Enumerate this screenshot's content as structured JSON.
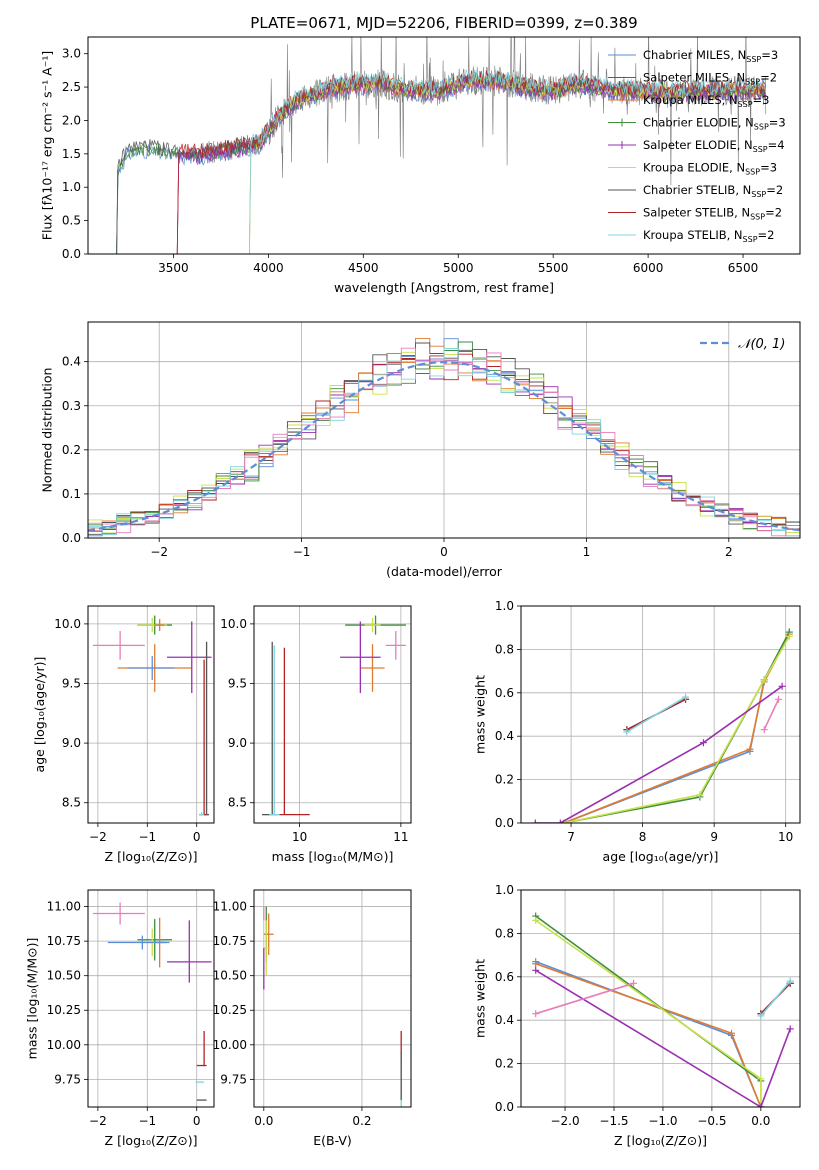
{
  "figure": {
    "title": "PLATE=0671, MJD=52206, FIBERID=0399, z=0.389"
  },
  "legend_entries": [
    {
      "label": "Chabrier MILES, N",
      "sub": "SSP",
      "suffix": "=3",
      "color": "#5b8fd6",
      "marker": false
    },
    {
      "label": "Salpeter MILES, N",
      "sub": "SSP",
      "suffix": "=2",
      "color": "#9a2fb0",
      "marker": false
    },
    {
      "label": "Kroupa MILES, N",
      "sub": "SSP",
      "suffix": "=3",
      "color": "#e07b30",
      "marker": false
    },
    {
      "label": "Chabrier ELODIE, N",
      "sub": "SSP",
      "suffix": "=3",
      "color": "#3e8e3e",
      "marker": true
    },
    {
      "label": "Salpeter ELODIE, N",
      "sub": "SSP",
      "suffix": "=4",
      "color": "#9a2fb0",
      "marker": true
    },
    {
      "label": "Kroupa ELODIE, N",
      "sub": "SSP",
      "suffix": "=3",
      "color": "#c8e04a",
      "marker": false
    },
    {
      "label": "Chabrier STELIB, N",
      "sub": "SSP",
      "suffix": "=2",
      "color": "#555555",
      "marker": false
    },
    {
      "label": "Salpeter STELIB, N",
      "sub": "SSP",
      "suffix": "=2",
      "color": "#b22222",
      "marker": false
    },
    {
      "label": "Kroupa STELIB, N",
      "sub": "SSP",
      "suffix": "=2",
      "color": "#7fd4e0",
      "marker": false
    }
  ],
  "chart_data": [
    {
      "id": "spectrum",
      "type": "line",
      "xlabel": "wavelength [Angstrom, rest frame]",
      "ylabel": "Flux [fλ10⁻¹⁷ erg cm⁻² s⁻¹ A⁻¹]",
      "xlim": [
        3050,
        6800
      ],
      "ylim": [
        0,
        3.25
      ],
      "xticks": [
        "3500",
        "4000",
        "4500",
        "5000",
        "5500",
        "6000",
        "6500"
      ],
      "yticks": [
        "0.0",
        "0.5",
        "1.0",
        "1.5",
        "2.0",
        "2.5",
        "3.0"
      ],
      "grid": false,
      "legend": "right",
      "continuum": {
        "x": [
          3200,
          3260,
          3350,
          3450,
          3550,
          3650,
          3750,
          3850,
          3950,
          4050,
          4150,
          4300,
          4450,
          4600,
          4750,
          4900,
          5050,
          5200,
          5350,
          5500,
          5650,
          5800,
          5950,
          6100,
          6250,
          6400,
          6550,
          6620
        ],
        "y": [
          1.25,
          1.55,
          1.6,
          1.55,
          1.5,
          1.5,
          1.55,
          1.6,
          1.65,
          2.05,
          2.3,
          2.45,
          2.55,
          2.55,
          2.45,
          2.45,
          2.6,
          2.6,
          2.5,
          2.45,
          2.55,
          2.45,
          2.45,
          2.4,
          2.45,
          2.45,
          2.45,
          2.45
        ]
      },
      "model_starts": [
        3200,
        3520,
        3900
      ],
      "series_colors": [
        "#5b8fd6",
        "#9a2fb0",
        "#e07b30",
        "#3e8e3e",
        "#9a2fb0",
        "#c8e04a",
        "#555555",
        "#b22222",
        "#7fd4e0"
      ]
    },
    {
      "id": "residuals",
      "type": "histogram",
      "xlabel": "(data-model)/error",
      "ylabel": "Normed distribution",
      "xlim": [
        -2.5,
        2.5
      ],
      "ylim": [
        0,
        0.49
      ],
      "xticks": [
        "−2",
        "−1",
        "0",
        "1",
        "2"
      ],
      "yticks": [
        "0.0",
        "0.1",
        "0.2",
        "0.3",
        "0.4"
      ],
      "grid": true,
      "legend": "top-right",
      "series": [
        {
          "name": "𝒩(0, 1)",
          "style": "dashed",
          "color": "#5b8fd6"
        }
      ],
      "bin_width": 0.1
    },
    {
      "id": "age_vs_Z",
      "type": "errorbar",
      "xlabel": "Z [log₁₀(Z/Z⊙)]",
      "ylabel": "age  [log₁₀(age/yr)]",
      "xlim": [
        -2.2,
        0.35
      ],
      "ylim": [
        8.33,
        10.15
      ],
      "xticks": [
        "−2",
        "−1",
        "0"
      ],
      "yticks": [
        "8.5",
        "9.0",
        "9.5",
        "10.0"
      ],
      "grid": true,
      "points": [
        {
          "x": -1.55,
          "y": 9.82,
          "xe": [
            0.55,
            0.5
          ],
          "ye": [
            0.12,
            0.12
          ],
          "c": "#e87eb8"
        },
        {
          "x": -0.85,
          "y": 9.99,
          "xe": [
            0.35,
            0.35
          ],
          "ye": [
            0.08,
            0.08
          ],
          "c": "#3e8e3e"
        },
        {
          "x": -0.9,
          "y": 9.99,
          "xe": [
            0.3,
            0.3
          ],
          "ye": [
            0.06,
            0.06
          ],
          "c": "#c8e04a"
        },
        {
          "x": -0.75,
          "y": 9.99,
          "xe": [
            0.1,
            0.1
          ],
          "ye": [
            0.05,
            0.05
          ],
          "c": "#e07b30"
        },
        {
          "x": -0.85,
          "y": 9.63,
          "xe": [
            0.75,
            0.75
          ],
          "ye": [
            0.2,
            0.2
          ],
          "c": "#e07b30"
        },
        {
          "x": -0.9,
          "y": 9.63,
          "xe": [
            0.5,
            0.45
          ],
          "ye": [
            0.1,
            0.1
          ],
          "c": "#5b8fd6"
        },
        {
          "x": -0.1,
          "y": 9.72,
          "xe": [
            0.5,
            0.4
          ],
          "ye": [
            0.3,
            0.3
          ],
          "c": "#9a2fb0"
        },
        {
          "x": 0.2,
          "y": 8.4,
          "xe": [
            0.05,
            0.05
          ],
          "ye": [
            0.0,
            1.45
          ],
          "c": "#555555"
        },
        {
          "x": 0.15,
          "y": 8.4,
          "xe": [
            0.1,
            0.05
          ],
          "ye": [
            0.0,
            1.3
          ],
          "c": "#b22222"
        },
        {
          "x": 0.1,
          "y": 8.4,
          "xe": [
            0.05,
            0.05
          ],
          "ye": [
            0.0,
            0.02
          ],
          "c": "#7fd4e0"
        }
      ]
    },
    {
      "id": "age_vs_mass",
      "type": "errorbar",
      "xlabel": "mass [log₁₀(M/M⊙)]",
      "ylabel": "",
      "xlim": [
        9.55,
        11.1
      ],
      "ylim": [
        8.33,
        10.15
      ],
      "xticks": [
        "10",
        "11"
      ],
      "yticks": [
        "8.5",
        "9.0",
        "9.5",
        "10.0"
      ],
      "grid": true,
      "points": [
        {
          "x": 10.95,
          "y": 9.82,
          "xe": [
            0.1,
            0.1
          ],
          "ye": [
            0.12,
            0.12
          ],
          "c": "#e87eb8"
        },
        {
          "x": 10.75,
          "y": 9.99,
          "xe": [
            0.3,
            0.3
          ],
          "ye": [
            0.08,
            0.08
          ],
          "c": "#3e8e3e"
        },
        {
          "x": 10.72,
          "y": 9.99,
          "xe": [
            0.08,
            0.08
          ],
          "ye": [
            0.06,
            0.06
          ],
          "c": "#c8e04a"
        },
        {
          "x": 10.72,
          "y": 9.63,
          "xe": [
            0.12,
            0.12
          ],
          "ye": [
            0.2,
            0.2
          ],
          "c": "#e07b30"
        },
        {
          "x": 10.6,
          "y": 9.72,
          "xe": [
            0.2,
            0.2
          ],
          "ye": [
            0.3,
            0.3
          ],
          "c": "#9a2fb0"
        },
        {
          "x": 9.73,
          "y": 8.4,
          "xe": [
            0.1,
            0.05
          ],
          "ye": [
            0.0,
            1.45
          ],
          "c": "#555555"
        },
        {
          "x": 9.85,
          "y": 8.4,
          "xe": [
            0.05,
            0.25
          ],
          "ye": [
            0.0,
            1.4
          ],
          "c": "#b22222"
        },
        {
          "x": 9.75,
          "y": 8.4,
          "xe": [
            0.05,
            0.05
          ],
          "ye": [
            0.0,
            1.42
          ],
          "c": "#7fd4e0"
        }
      ]
    },
    {
      "id": "massweight_vs_age",
      "type": "line",
      "xlabel": "age  [log₁₀(age/yr)]",
      "ylabel": "mass weight",
      "xlim": [
        6.3,
        10.2
      ],
      "ylim": [
        0,
        1
      ],
      "xticks": [
        "7",
        "8",
        "9",
        "10"
      ],
      "yticks": [
        "0.0",
        "0.2",
        "0.4",
        "0.6",
        "0.8",
        "1.0"
      ],
      "grid": true,
      "series": [
        {
          "c": "#5b8fd6",
          "x": [
            6.9,
            9.5,
            9.7,
            10.05
          ],
          "y": [
            0.0,
            0.33,
            0.66,
            0.88
          ]
        },
        {
          "c": "#e07b30",
          "x": [
            6.9,
            9.5,
            9.7,
            10.05
          ],
          "y": [
            0.0,
            0.34,
            0.65,
            0.87
          ]
        },
        {
          "c": "#3e8e3e",
          "x": [
            6.9,
            8.8,
            9.7,
            10.05
          ],
          "y": [
            0.0,
            0.12,
            0.66,
            0.88
          ]
        },
        {
          "c": "#c8e04a",
          "x": [
            6.9,
            8.8,
            9.7,
            10.05
          ],
          "y": [
            0.0,
            0.13,
            0.66,
            0.86
          ]
        },
        {
          "c": "#9a2fb0",
          "x": [
            6.5,
            6.85,
            8.85,
            9.95
          ],
          "y": [
            0.0,
            0.0,
            0.37,
            0.63
          ]
        },
        {
          "c": "#e87eb8",
          "x": [
            9.7,
            9.9
          ],
          "y": [
            0.43,
            0.57
          ]
        },
        {
          "c": "#555555",
          "x": [
            7.78,
            8.6
          ],
          "y": [
            0.43,
            0.57
          ]
        },
        {
          "c": "#b22222",
          "x": [
            7.78,
            8.6
          ],
          "y": [
            0.43,
            0.57
          ]
        },
        {
          "c": "#7fd4e0",
          "x": [
            7.78,
            8.6
          ],
          "y": [
            0.42,
            0.58
          ]
        }
      ]
    },
    {
      "id": "mass_vs_Z",
      "type": "errorbar",
      "xlabel": "Z [log₁₀(Z/Z⊙)]",
      "ylabel": "mass [log₁₀(M/M⊙)]",
      "xlim": [
        -2.2,
        0.35
      ],
      "ylim": [
        9.55,
        11.12
      ],
      "xticks": [
        "−2",
        "−1",
        "0"
      ],
      "yticks": [
        "9.75",
        "10.00",
        "10.25",
        "10.50",
        "10.75",
        "11.00"
      ],
      "grid": true,
      "points": [
        {
          "x": -1.55,
          "y": 10.95,
          "xe": [
            0.55,
            0.5
          ],
          "ye": [
            0.08,
            0.08
          ],
          "c": "#e87eb8"
        },
        {
          "x": -0.85,
          "y": 10.76,
          "xe": [
            0.35,
            0.35
          ],
          "ye": [
            0.15,
            0.15
          ],
          "c": "#3e8e3e"
        },
        {
          "x": -0.9,
          "y": 10.74,
          "xe": [
            0.3,
            0.3
          ],
          "ye": [
            0.1,
            0.1
          ],
          "c": "#c8e04a"
        },
        {
          "x": -0.75,
          "y": 10.74,
          "xe": [
            0.1,
            0.1
          ],
          "ye": [
            0.18,
            0.18
          ],
          "c": "#e07b30"
        },
        {
          "x": -1.1,
          "y": 10.74,
          "xe": [
            0.7,
            0.55
          ],
          "ye": [
            0.05,
            0.05
          ],
          "c": "#5b8fd6"
        },
        {
          "x": -0.15,
          "y": 10.6,
          "xe": [
            0.45,
            0.45
          ],
          "ye": [
            0.15,
            0.3
          ],
          "c": "#9a2fb0"
        },
        {
          "x": 0.15,
          "y": 9.85,
          "xe": [
            0.15,
            0.05
          ],
          "ye": [
            0.0,
            0.25
          ],
          "c": "#b22222"
        },
        {
          "x": 0.1,
          "y": 9.73,
          "xe": [
            0.12,
            0.05
          ],
          "ye": [
            0.0,
            0.0
          ],
          "c": "#7fd4e0"
        },
        {
          "x": 0.15,
          "y": 9.6,
          "xe": [
            0.15,
            0.05
          ],
          "ye": [
            0.0,
            0.0
          ],
          "c": "#555555"
        }
      ]
    },
    {
      "id": "mass_vs_EBV",
      "type": "errorbar",
      "xlabel": "E(B-V)",
      "ylabel": "",
      "xlim": [
        -0.02,
        0.3
      ],
      "ylim": [
        9.55,
        11.12
      ],
      "xticks": [
        "0.0",
        "0.2"
      ],
      "yticks": [
        "9.75",
        "10.00",
        "10.25",
        "10.50",
        "10.75",
        "11.00"
      ],
      "grid": true,
      "points": [
        {
          "x": 0.005,
          "y": 10.8,
          "xe": [
            0.005,
            0.005
          ],
          "ye": [
            0.2,
            0.2
          ],
          "c": "#3e8e3e"
        },
        {
          "x": 0.01,
          "y": 10.8,
          "xe": [
            0.01,
            0.01
          ],
          "ye": [
            0.15,
            0.15
          ],
          "c": "#e07b30"
        },
        {
          "x": 0.005,
          "y": 10.7,
          "xe": [
            0.005,
            0.005
          ],
          "ye": [
            0.2,
            0.2
          ],
          "c": "#c8e04a"
        },
        {
          "x": 0.0,
          "y": 10.6,
          "xe": [
            0.0,
            0.0
          ],
          "ye": [
            0.2,
            0.1
          ],
          "c": "#9a2fb0"
        },
        {
          "x": 0.0,
          "y": 10.95,
          "xe": [
            0.0,
            0.0
          ],
          "ye": [
            0.05,
            0.05
          ],
          "c": "#e87eb8"
        },
        {
          "x": 0.28,
          "y": 9.85,
          "xe": [
            0.0,
            0.0
          ],
          "ye": [
            0.0,
            0.25
          ],
          "c": "#b22222"
        },
        {
          "x": 0.28,
          "y": 9.73,
          "xe": [
            0.0,
            0.0
          ],
          "ye": [
            0.2,
            0.2
          ],
          "c": "#7fd4e0"
        },
        {
          "x": 0.28,
          "y": 9.6,
          "xe": [
            0.0,
            0.0
          ],
          "ye": [
            0.0,
            0.35
          ],
          "c": "#555555"
        }
      ]
    },
    {
      "id": "massweight_vs_Z",
      "type": "line",
      "xlabel": "Z [log₁₀(Z/Z⊙)]",
      "ylabel": "mass weight",
      "xlim": [
        -2.45,
        0.4
      ],
      "ylim": [
        0,
        1
      ],
      "xticks": [
        "−2.0",
        "−1.5",
        "−1.0",
        "−0.5",
        "0.0"
      ],
      "yticks": [
        "0.0",
        "0.2",
        "0.4",
        "0.6",
        "0.8",
        "1.0"
      ],
      "grid": true,
      "series": [
        {
          "c": "#5b8fd6",
          "x": [
            -2.3,
            -0.3,
            0.0
          ],
          "y": [
            0.67,
            0.33,
            0.0
          ]
        },
        {
          "c": "#e07b30",
          "x": [
            -2.3,
            -0.3,
            0.0
          ],
          "y": [
            0.66,
            0.34,
            0.0
          ]
        },
        {
          "c": "#3e8e3e",
          "x": [
            -2.3,
            0.0,
            0.0
          ],
          "y": [
            0.88,
            0.12,
            0.0
          ]
        },
        {
          "c": "#c8e04a",
          "x": [
            -2.3,
            0.0,
            0.0
          ],
          "y": [
            0.86,
            0.13,
            0.0
          ]
        },
        {
          "c": "#9a2fb0",
          "x": [
            -2.3,
            0.0,
            0.3
          ],
          "y": [
            0.63,
            0.0,
            0.36
          ]
        },
        {
          "c": "#e87eb8",
          "x": [
            -2.3,
            -1.3
          ],
          "y": [
            0.43,
            0.57
          ]
        },
        {
          "c": "#555555",
          "x": [
            0.0,
            0.3
          ],
          "y": [
            0.43,
            0.57
          ]
        },
        {
          "c": "#b22222",
          "x": [
            0.0,
            0.3
          ],
          "y": [
            0.43,
            0.57
          ]
        },
        {
          "c": "#7fd4e0",
          "x": [
            0.0,
            0.3
          ],
          "y": [
            0.42,
            0.58
          ]
        }
      ]
    }
  ]
}
